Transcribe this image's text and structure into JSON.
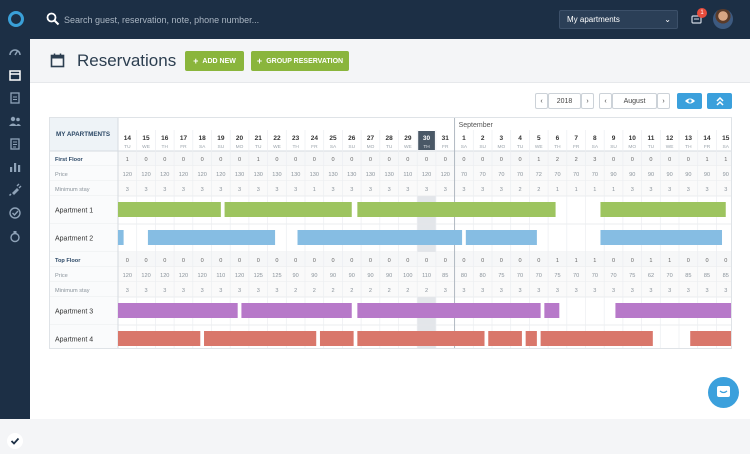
{
  "header": {
    "search_placeholder": "Search guest, reservation, note, phone number...",
    "property_select": "My apartments",
    "notification_count": "1"
  },
  "page": {
    "title": "Reservations",
    "add_new_label": "ADD NEW",
    "group_reservation_label": "GROUP RESERVATION"
  },
  "controls": {
    "year": "2018",
    "month": "August"
  },
  "calendar": {
    "corner_label": "MY APARTMENTS",
    "month_aug": "",
    "month_sep": "September",
    "today_index": 16,
    "days": [
      {
        "d": "14",
        "w": "TU"
      },
      {
        "d": "15",
        "w": "WE"
      },
      {
        "d": "16",
        "w": "TH"
      },
      {
        "d": "17",
        "w": "FR"
      },
      {
        "d": "18",
        "w": "SA"
      },
      {
        "d": "19",
        "w": "SU"
      },
      {
        "d": "20",
        "w": "MO"
      },
      {
        "d": "21",
        "w": "TU"
      },
      {
        "d": "22",
        "w": "WE"
      },
      {
        "d": "23",
        "w": "TH"
      },
      {
        "d": "24",
        "w": "FR"
      },
      {
        "d": "25",
        "w": "SA"
      },
      {
        "d": "26",
        "w": "SU"
      },
      {
        "d": "27",
        "w": "MO"
      },
      {
        "d": "28",
        "w": "TU"
      },
      {
        "d": "29",
        "w": "WE"
      },
      {
        "d": "30",
        "w": "TH"
      },
      {
        "d": "31",
        "w": "FR"
      },
      {
        "d": "1",
        "w": "SA"
      },
      {
        "d": "2",
        "w": "SU"
      },
      {
        "d": "3",
        "w": "MO"
      },
      {
        "d": "4",
        "w": "TU"
      },
      {
        "d": "5",
        "w": "WE"
      },
      {
        "d": "6",
        "w": "TH"
      },
      {
        "d": "7",
        "w": "FR"
      },
      {
        "d": "8",
        "w": "SA"
      },
      {
        "d": "9",
        "w": "SU"
      },
      {
        "d": "10",
        "w": "MO"
      },
      {
        "d": "11",
        "w": "TU"
      },
      {
        "d": "12",
        "w": "WE"
      },
      {
        "d": "13",
        "w": "TH"
      },
      {
        "d": "14",
        "w": "FR"
      },
      {
        "d": "15",
        "w": "SA"
      }
    ],
    "groups": [
      {
        "name": "First Floor",
        "availability": [
          "1",
          "0",
          "0",
          "0",
          "0",
          "0",
          "0",
          "1",
          "0",
          "0",
          "0",
          "0",
          "0",
          "0",
          "0",
          "0",
          "0",
          "0",
          "0",
          "0",
          "0",
          "0",
          "1",
          "2",
          "2",
          "3",
          "0",
          "0",
          "0",
          "0",
          "0",
          "1",
          "1"
        ],
        "price": [
          "120",
          "120",
          "120",
          "120",
          "120",
          "120",
          "130",
          "130",
          "130",
          "130",
          "130",
          "130",
          "130",
          "130",
          "130",
          "110",
          "120",
          "120",
          "70",
          "70",
          "70",
          "70",
          "72",
          "70",
          "70",
          "70",
          "90",
          "90",
          "90",
          "90",
          "90",
          "90",
          "90"
        ],
        "min_stay": [
          "3",
          "3",
          "3",
          "3",
          "3",
          "3",
          "3",
          "3",
          "3",
          "3",
          "1",
          "3",
          "3",
          "3",
          "3",
          "3",
          "3",
          "3",
          "3",
          "3",
          "3",
          "2",
          "2",
          "1",
          "1",
          "1",
          "1",
          "3",
          "3",
          "3",
          "3",
          "3",
          "3"
        ],
        "apartments": [
          {
            "name": "Apartment 1",
            "bars": [
              [
                0,
                5.5
              ],
              [
                5.7,
                12.5
              ],
              [
                12.8,
                23.4
              ],
              [
                25.8,
                32.5
              ],
              [
                32.8,
                33
              ]
            ]
          },
          {
            "name": "Apartment 2",
            "bars": [
              [
                0,
                0.3
              ],
              [
                1.6,
                8.4
              ],
              [
                9.6,
                18.4
              ],
              [
                18.6,
                22.4
              ],
              [
                25.8,
                32.3
              ]
            ]
          }
        ]
      },
      {
        "name": "Top Floor",
        "availability": [
          "0",
          "0",
          "0",
          "0",
          "0",
          "0",
          "0",
          "0",
          "0",
          "0",
          "0",
          "0",
          "0",
          "0",
          "0",
          "0",
          "0",
          "0",
          "0",
          "0",
          "0",
          "0",
          "0",
          "1",
          "1",
          "1",
          "0",
          "0",
          "1",
          "1",
          "0",
          "0",
          "0"
        ],
        "price": [
          "120",
          "120",
          "120",
          "120",
          "120",
          "110",
          "120",
          "125",
          "125",
          "90",
          "90",
          "90",
          "90",
          "90",
          "90",
          "100",
          "110",
          "85",
          "80",
          "80",
          "75",
          "70",
          "70",
          "75",
          "70",
          "70",
          "70",
          "75",
          "62",
          "70",
          "85",
          "85",
          "85"
        ],
        "min_stay": [
          "3",
          "3",
          "3",
          "3",
          "3",
          "3",
          "3",
          "3",
          "3",
          "2",
          "2",
          "2",
          "2",
          "2",
          "2",
          "2",
          "2",
          "3",
          "3",
          "3",
          "3",
          "3",
          "3",
          "3",
          "3",
          "3",
          "3",
          "3",
          "3",
          "3",
          "3",
          "3",
          "3"
        ],
        "apartments": [
          {
            "name": "Apartment 3",
            "bars": [
              [
                0,
                6.4
              ],
              [
                6.6,
                12.5
              ],
              [
                12.8,
                22.6
              ],
              [
                22.8,
                23.6
              ],
              [
                26.6,
                33
              ]
            ]
          },
          {
            "name": "Apartment 4",
            "bars": [
              [
                0,
                4.4
              ],
              [
                4.6,
                10.6
              ],
              [
                10.8,
                12.6
              ],
              [
                12.8,
                19.6
              ],
              [
                19.8,
                21.6
              ],
              [
                21.8,
                22.4
              ],
              [
                22.6,
                28.6
              ],
              [
                30.6,
                33
              ]
            ]
          }
        ]
      }
    ],
    "row_labels": {
      "price": "Price",
      "min_stay": "Minimum stay"
    },
    "colors": {
      "Apartment 1": "#9dc45f",
      "Apartment 2": "#86bde3",
      "Apartment 3": "#b779c9",
      "Apartment 4": "#d9776b",
      "today": "#4a5866"
    }
  }
}
